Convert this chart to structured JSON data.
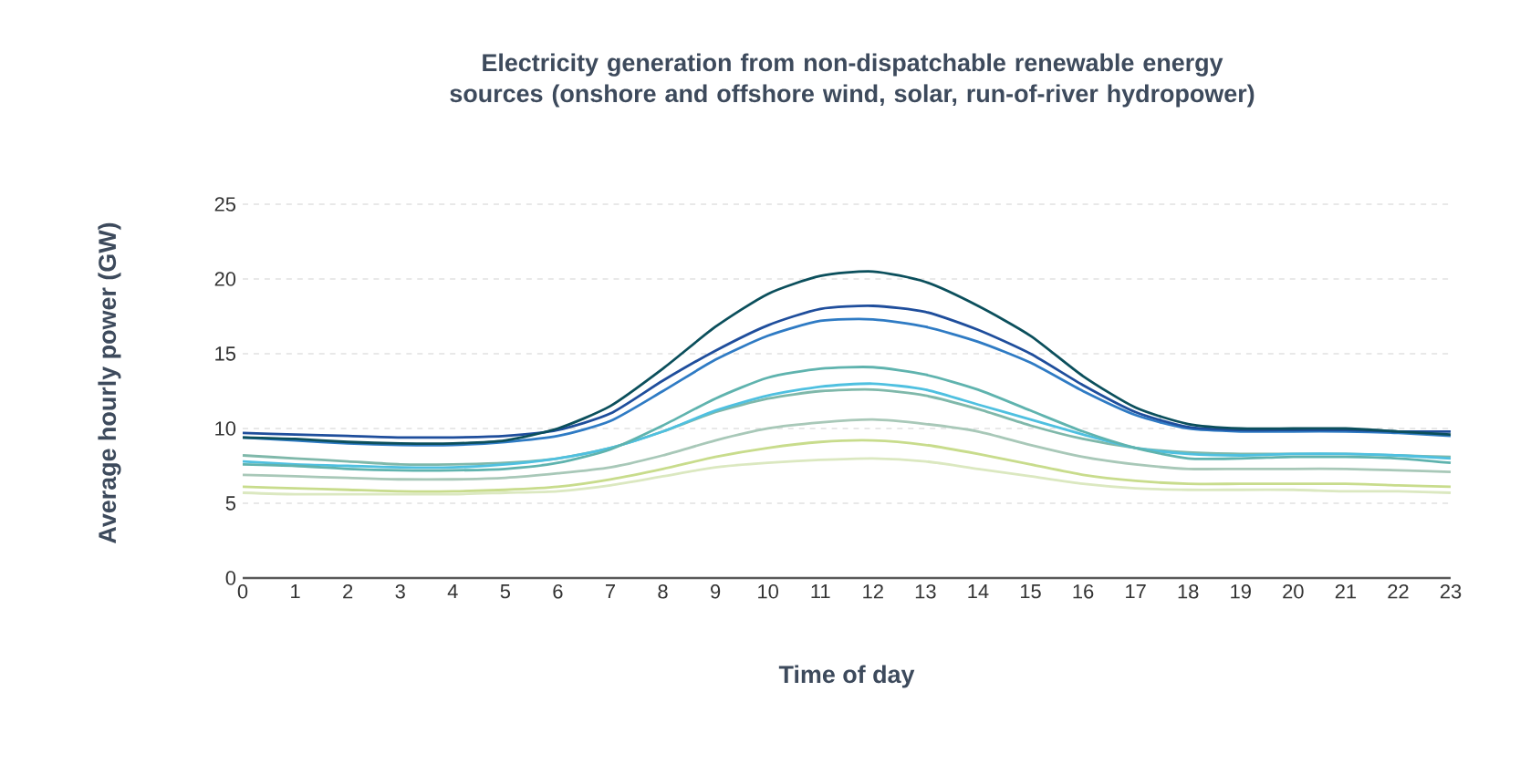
{
  "chart_data": {
    "type": "line",
    "title": "Electricity generation from non-dispatchable renewable energy sources (onshore and offshore wind, solar, run-of-river hydropower)",
    "xlabel": "Time of day",
    "ylabel": "Average hourly power (GW)",
    "x": [
      0,
      1,
      2,
      3,
      4,
      5,
      6,
      7,
      8,
      9,
      10,
      11,
      12,
      13,
      14,
      15,
      16,
      17,
      18,
      19,
      20,
      21,
      22,
      23
    ],
    "xlim": [
      0,
      23
    ],
    "xticks": [
      0,
      1,
      2,
      3,
      4,
      5,
      6,
      7,
      8,
      9,
      10,
      11,
      12,
      13,
      14,
      15,
      16,
      17,
      18,
      19,
      20,
      21,
      22,
      23
    ],
    "ylim": [
      0,
      25
    ],
    "yticks": [
      0,
      5,
      10,
      15,
      20,
      25
    ],
    "grid": "y",
    "marker": "none",
    "line_style": "solid",
    "series": [
      {
        "color": "#dbe8c0",
        "values": [
          5.7,
          5.6,
          5.6,
          5.6,
          5.6,
          5.7,
          5.8,
          6.2,
          6.8,
          7.4,
          7.7,
          7.9,
          8.0,
          7.8,
          7.3,
          6.8,
          6.3,
          6.0,
          5.9,
          5.9,
          5.9,
          5.8,
          5.8,
          5.7
        ]
      },
      {
        "color": "#c8dc8c",
        "values": [
          6.1,
          6.0,
          5.9,
          5.8,
          5.8,
          5.9,
          6.1,
          6.6,
          7.3,
          8.1,
          8.7,
          9.1,
          9.2,
          8.9,
          8.3,
          7.6,
          6.9,
          6.5,
          6.3,
          6.3,
          6.3,
          6.3,
          6.2,
          6.1
        ]
      },
      {
        "color": "#a8c8b8",
        "values": [
          6.9,
          6.8,
          6.7,
          6.6,
          6.6,
          6.7,
          7.0,
          7.4,
          8.2,
          9.2,
          10.0,
          10.4,
          10.6,
          10.3,
          9.8,
          8.9,
          8.1,
          7.6,
          7.3,
          7.3,
          7.3,
          7.3,
          7.2,
          7.1
        ]
      },
      {
        "color": "#7fb8aa",
        "values": [
          8.2,
          8.0,
          7.8,
          7.6,
          7.6,
          7.7,
          8.0,
          8.7,
          9.8,
          11.1,
          12.0,
          12.5,
          12.6,
          12.2,
          11.3,
          10.2,
          9.3,
          8.7,
          8.4,
          8.3,
          8.3,
          8.3,
          8.2,
          8.1
        ]
      },
      {
        "color": "#4fc0e0",
        "values": [
          7.8,
          7.6,
          7.5,
          7.4,
          7.4,
          7.6,
          8.0,
          8.7,
          9.8,
          11.2,
          12.2,
          12.8,
          13.0,
          12.6,
          11.6,
          10.6,
          9.6,
          8.7,
          8.3,
          8.2,
          8.3,
          8.3,
          8.2,
          8.0
        ]
      },
      {
        "color": "#5fb3ae",
        "values": [
          7.6,
          7.5,
          7.3,
          7.2,
          7.2,
          7.3,
          7.7,
          8.6,
          10.2,
          12.0,
          13.4,
          14.0,
          14.1,
          13.6,
          12.6,
          11.2,
          9.8,
          8.7,
          8.0,
          8.0,
          8.1,
          8.1,
          8.0,
          7.7
        ]
      },
      {
        "color": "#2f7bc4",
        "values": [
          9.4,
          9.2,
          9.0,
          8.9,
          8.9,
          9.1,
          9.5,
          10.5,
          12.5,
          14.6,
          16.2,
          17.2,
          17.3,
          16.8,
          15.8,
          14.4,
          12.5,
          10.9,
          10.0,
          9.8,
          9.8,
          9.8,
          9.7,
          9.5
        ]
      },
      {
        "color": "#1f4e9c",
        "values": [
          9.7,
          9.6,
          9.5,
          9.4,
          9.4,
          9.5,
          9.9,
          11.0,
          13.2,
          15.2,
          16.9,
          18.0,
          18.2,
          17.8,
          16.6,
          15.0,
          12.9,
          11.1,
          10.1,
          9.9,
          9.9,
          9.9,
          9.8,
          9.8
        ]
      },
      {
        "color": "#0b4f5c",
        "values": [
          9.4,
          9.3,
          9.1,
          9.0,
          9.0,
          9.2,
          10.0,
          11.5,
          14.0,
          16.8,
          19.0,
          20.2,
          20.5,
          19.8,
          18.2,
          16.2,
          13.5,
          11.4,
          10.3,
          10.0,
          10.0,
          10.0,
          9.8,
          9.6
        ]
      }
    ]
  }
}
